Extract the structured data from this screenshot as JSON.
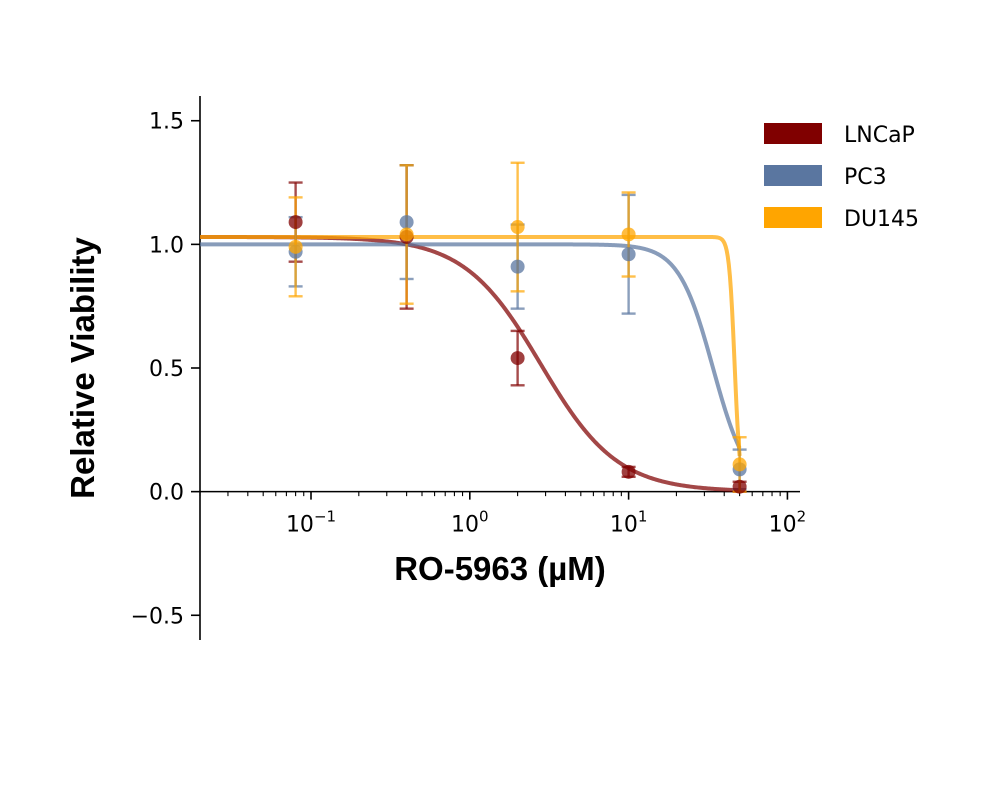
{
  "chart_data": {
    "type": "scatter",
    "xlabel": "RO-5963 (µM)",
    "ylabel": "Relative Viability",
    "xscale": "log",
    "xlim": [
      0.02,
      120
    ],
    "ylim": [
      -0.6,
      1.6
    ],
    "x_ticks": [
      {
        "value": 0.1,
        "base": "10",
        "exp": "−1"
      },
      {
        "value": 1,
        "base": "10",
        "exp": "0"
      },
      {
        "value": 10,
        "base": "10",
        "exp": "1"
      },
      {
        "value": 100,
        "base": "10",
        "exp": "2"
      }
    ],
    "y_ticks": [
      {
        "value": -0.5,
        "label": "−0.5"
      },
      {
        "value": 0.0,
        "label": "0.0"
      },
      {
        "value": 0.5,
        "label": "0.5"
      },
      {
        "value": 1.0,
        "label": "1.0"
      },
      {
        "value": 1.5,
        "label": "1.5"
      }
    ],
    "grid": false,
    "legend_position": "top-right",
    "series": [
      {
        "name": "LNCaP",
        "color": "#800000",
        "x": [
          0.08,
          0.4,
          2,
          10,
          50
        ],
        "y": [
          1.09,
          1.03,
          0.54,
          0.08,
          0.02
        ],
        "error": [
          0.16,
          0.29,
          0.11,
          0.02,
          0.02
        ],
        "fit": {
          "top": 1.03,
          "bottom": 0.0,
          "ic50": 2.8,
          "hill": 1.8
        }
      },
      {
        "name": "PC3",
        "color": "#5a76a0",
        "x": [
          0.08,
          0.4,
          2,
          10,
          50
        ],
        "y": [
          0.97,
          1.09,
          0.91,
          0.96,
          0.09
        ],
        "error": [
          0.14,
          0.23,
          0.17,
          0.24,
          0.08
        ],
        "fit": {
          "top": 1.0,
          "bottom": 0.0,
          "ic50": 34,
          "hill": 4
        }
      },
      {
        "name": "DU145",
        "color": "#ffa500",
        "x": [
          0.08,
          0.4,
          2,
          10,
          50
        ],
        "y": [
          0.99,
          1.04,
          1.07,
          1.04,
          0.11
        ],
        "error": [
          0.2,
          0.28,
          0.26,
          0.17,
          0.11
        ],
        "fit": {
          "top": 1.03,
          "bottom": 0.0,
          "ic50": 46.5,
          "hill": 25
        }
      }
    ]
  }
}
